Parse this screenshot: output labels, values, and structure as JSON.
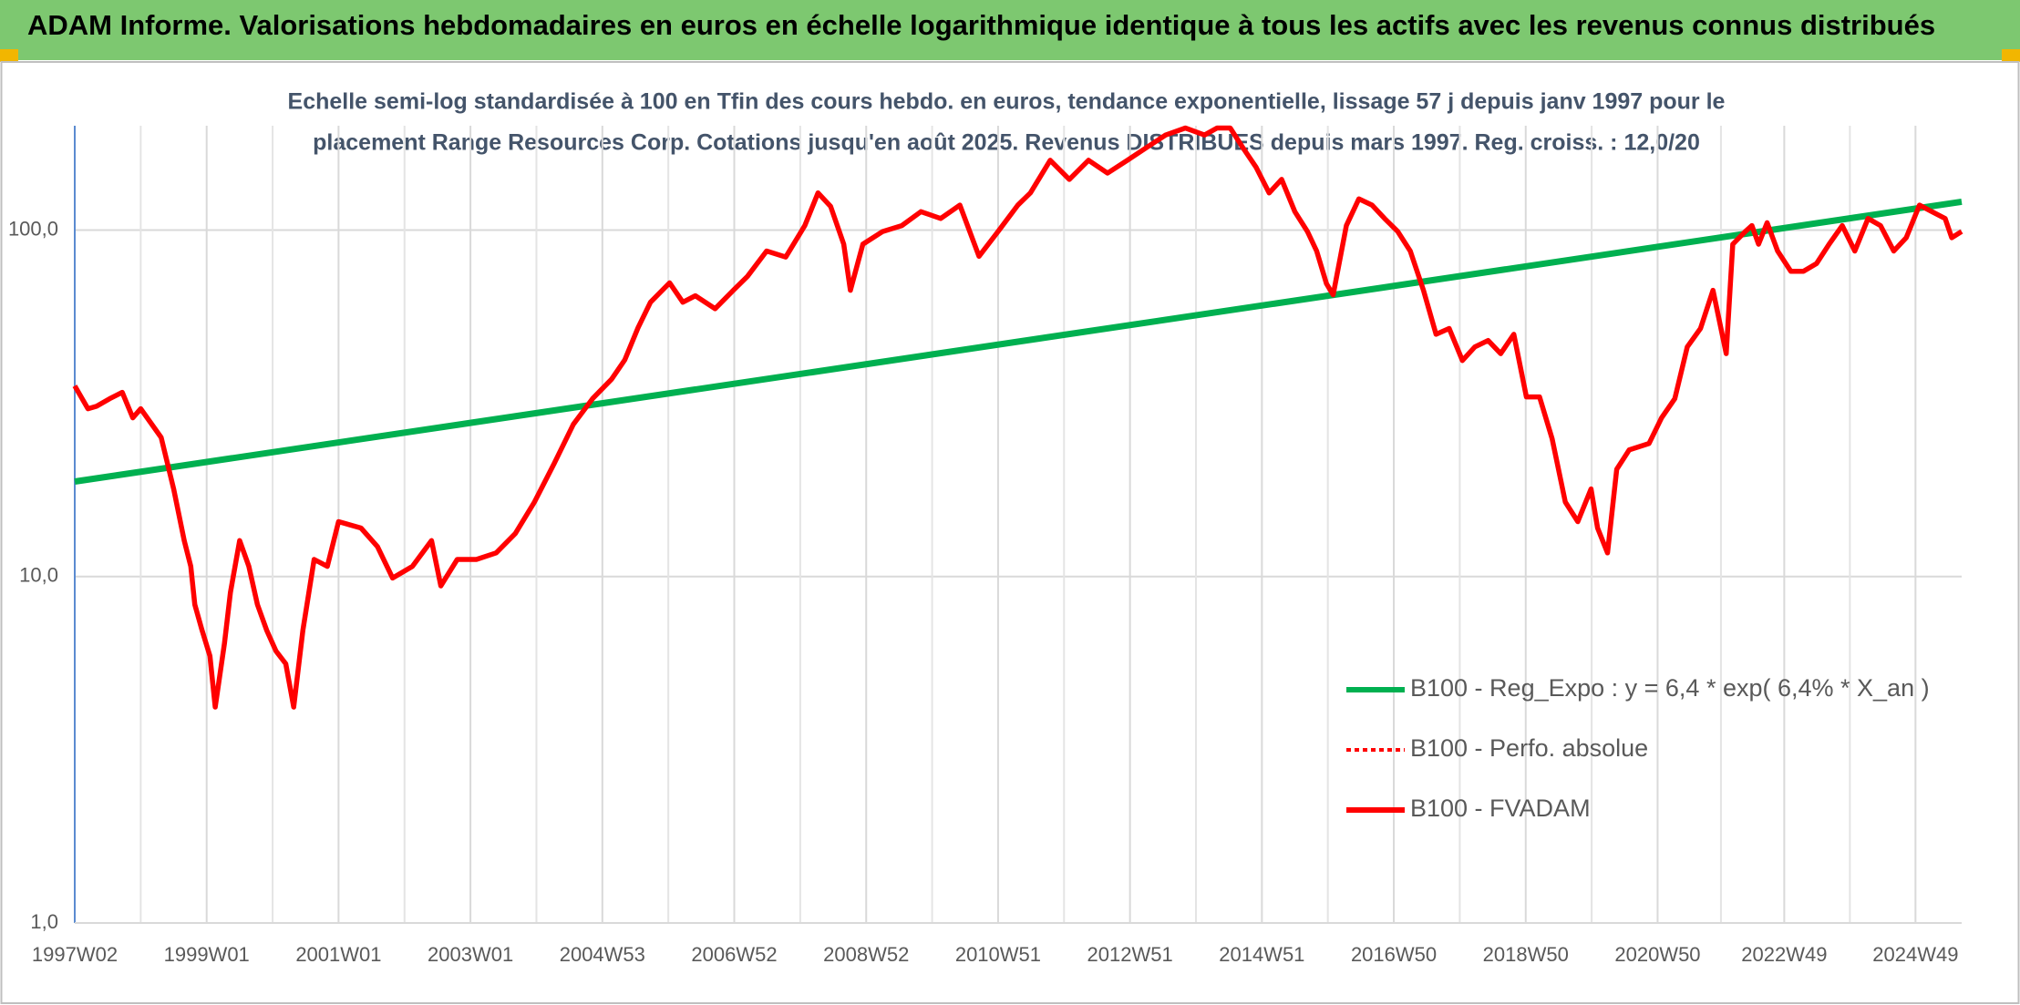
{
  "header": {
    "title": "ADAM Informe. Valorisations hebdomadaires en euros en échelle logarithmique identique à tous les actifs avec les revenus connus distribués"
  },
  "chart_data": {
    "type": "line",
    "title_lines": [
      "Echelle semi-log standardisée à 100 en Tfin des cours hebdo. en euros, tendance exponentielle, lissage 57 j depuis janv 1997 pour le",
      "placement Range Resources Corp. Cotations jusqu'en août 2025. Revenus DISTRIBUES depuis mars 1997. Reg. croiss. : 12,0/20"
    ],
    "log_y": true,
    "grid": true,
    "xlim": [
      1997.0,
      2025.61
    ],
    "xticks": [
      {
        "value": 1997.0,
        "label": "1997W02"
      },
      {
        "value": 1999.0,
        "label": "1999W01"
      },
      {
        "value": 2001.0,
        "label": "2001W01"
      },
      {
        "value": 2003.0,
        "label": "2003W01"
      },
      {
        "value": 2005.0,
        "label": "2004W53"
      },
      {
        "value": 2007.0,
        "label": "2006W52"
      },
      {
        "value": 2009.0,
        "label": "2008W52"
      },
      {
        "value": 2011.0,
        "label": "2010W51"
      },
      {
        "value": 2013.0,
        "label": "2012W51"
      },
      {
        "value": 2015.0,
        "label": "2014W51"
      },
      {
        "value": 2017.0,
        "label": "2016W50"
      },
      {
        "value": 2019.0,
        "label": "2018W50"
      },
      {
        "value": 2021.0,
        "label": "2020W50"
      },
      {
        "value": 2022.92,
        "label": "2022W49"
      },
      {
        "value": 2024.91,
        "label": "2024W49"
      }
    ],
    "ylim": [
      1,
      200
    ],
    "yticks": [
      {
        "value": 1,
        "label": "1,0"
      },
      {
        "value": 10,
        "label": "10,0"
      },
      {
        "value": 100,
        "label": "100,0"
      }
    ],
    "series": [
      {
        "name": "B100 - Reg_Expo : y = 6,4 * exp( 6,4% *  X_an )",
        "color": "#00b050",
        "dash": "solid",
        "x": [
          1997.0,
          2025.61
        ],
        "values": [
          18.8,
          120.7
        ]
      },
      {
        "name": "B100 - Perfo. absolue",
        "color": "#ff0000",
        "dash": "dotted"
      },
      {
        "name": "B100 - FVADAM",
        "color": "#ff0000",
        "dash": "solid",
        "x": [
          1997.0,
          1997.2,
          1997.33,
          1997.53,
          1997.72,
          1997.88,
          1998.0,
          1998.31,
          1998.5,
          1998.66,
          1998.76,
          1998.82,
          1998.93,
          1999.05,
          1999.13,
          1999.27,
          1999.36,
          1999.5,
          1999.64,
          1999.77,
          1999.91,
          2000.05,
          2000.2,
          2000.32,
          2000.46,
          2000.63,
          2000.83,
          2001.0,
          2001.34,
          2001.59,
          2001.82,
          2002.12,
          2002.41,
          2002.55,
          2002.8,
          2003.09,
          2003.39,
          2003.68,
          2003.97,
          2004.27,
          2004.56,
          2004.85,
          2005.14,
          2005.34,
          2005.54,
          2005.73,
          2006.02,
          2006.22,
          2006.41,
          2006.71,
          2007.0,
          2007.2,
          2007.49,
          2007.78,
          2008.07,
          2008.27,
          2008.46,
          2008.66,
          2008.76,
          2008.95,
          2009.25,
          2009.54,
          2009.83,
          2010.13,
          2010.42,
          2010.71,
          2011.0,
          2011.3,
          2011.49,
          2011.79,
          2012.08,
          2012.37,
          2012.66,
          2012.96,
          2013.25,
          2013.54,
          2013.84,
          2014.13,
          2014.32,
          2014.52,
          2014.71,
          2014.91,
          2015.11,
          2015.3,
          2015.5,
          2015.69,
          2015.83,
          2015.98,
          2016.08,
          2016.28,
          2016.47,
          2016.67,
          2016.86,
          2017.06,
          2017.25,
          2017.45,
          2017.64,
          2017.84,
          2018.04,
          2018.23,
          2018.43,
          2018.62,
          2018.82,
          2019.01,
          2019.21,
          2019.4,
          2019.6,
          2019.79,
          2019.99,
          2020.09,
          2020.24,
          2020.38,
          2020.57,
          2020.87,
          2021.06,
          2021.26,
          2021.45,
          2021.65,
          2021.84,
          2022.04,
          2022.14,
          2022.33,
          2022.43,
          2022.53,
          2022.66,
          2022.82,
          2023.02,
          2023.21,
          2023.41,
          2023.6,
          2023.8,
          2023.99,
          2024.19,
          2024.38,
          2024.58,
          2024.77,
          2024.97,
          2025.16,
          2025.36,
          2025.46,
          2025.61
        ],
        "values": [
          35.5,
          30.5,
          31,
          32.6,
          34,
          28.7,
          30.5,
          25.2,
          17.9,
          12.7,
          10.7,
          8.3,
          7.0,
          5.9,
          4.2,
          6.4,
          9.0,
          12.7,
          10.7,
          8.3,
          7.0,
          6.1,
          5.6,
          4.2,
          7.0,
          11.2,
          10.7,
          14.4,
          13.8,
          12.2,
          9.9,
          10.7,
          12.7,
          9.4,
          11.2,
          11.2,
          11.7,
          13.3,
          16.4,
          21.2,
          27.5,
          32.6,
          37.1,
          42.2,
          52.2,
          61.9,
          70.4,
          61.9,
          64.6,
          59.3,
          67.4,
          73.5,
          87,
          83.6,
          103,
          128,
          117,
          91,
          67,
          91,
          99,
          103,
          113,
          108,
          118,
          84,
          99,
          118,
          128,
          159,
          140,
          159,
          146,
          159,
          173,
          188,
          197,
          188,
          197,
          197,
          173,
          152,
          128,
          140,
          113,
          99,
          87,
          70,
          65,
          103,
          123,
          118,
          108,
          99,
          87,
          67,
          50,
          52,
          42,
          46,
          48,
          44,
          50,
          33,
          33,
          25,
          16.4,
          14.4,
          17.9,
          13.8,
          11.7,
          20.4,
          23.2,
          24.2,
          28.7,
          32.6,
          46,
          52,
          67,
          44,
          91,
          99,
          103,
          91,
          105,
          87,
          76,
          76,
          80,
          91,
          103,
          87,
          108,
          103,
          87,
          95,
          118,
          113,
          108,
          95,
          99
        ]
      }
    ],
    "legend": "right"
  }
}
